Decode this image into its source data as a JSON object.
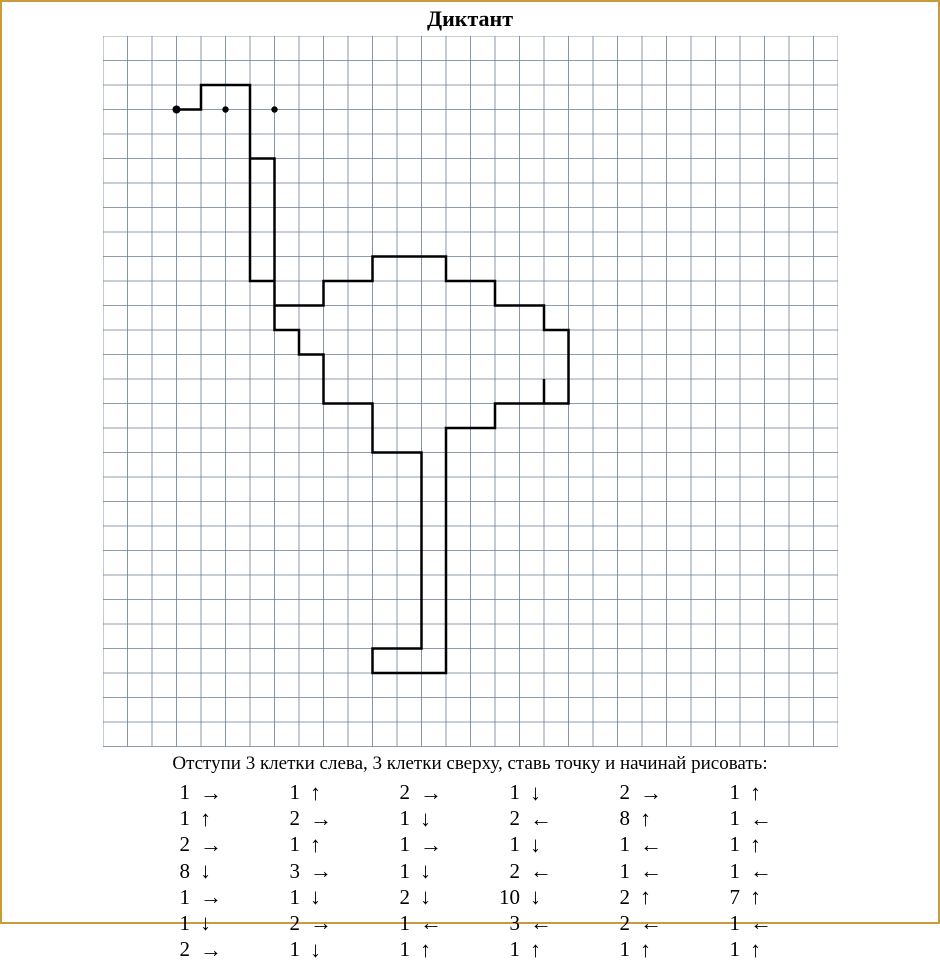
{
  "title": "Диктант",
  "caption": "Отступи 3 клетки слева, 3 клетки сверху, ставь точку и начинай рисовать:",
  "grid": {
    "cell": 24.5,
    "cols": 30,
    "rows": 29,
    "background": "#ffffff",
    "grid_color": "#6b7b99",
    "grid_stroke": 0.8,
    "outline_color": "#000000",
    "outline_stroke": 2.5,
    "dot_color": "#000000",
    "start": {
      "col": 3,
      "row": 3
    },
    "eye_dots": [
      {
        "col": 5,
        "row": 3
      },
      {
        "col": 7,
        "row": 3
      }
    ]
  },
  "arrows": {
    "right": "→",
    "left": "←",
    "up": "↑",
    "down": "↓"
  },
  "steps": [
    {
      "n": 1,
      "d": "right"
    },
    {
      "n": 1,
      "d": "up"
    },
    {
      "n": 2,
      "d": "right"
    },
    {
      "n": 8,
      "d": "down"
    },
    {
      "n": 1,
      "d": "right"
    },
    {
      "n": 1,
      "d": "down"
    },
    {
      "n": 2,
      "d": "right"
    },
    {
      "n": 1,
      "d": "up"
    },
    {
      "n": 2,
      "d": "right"
    },
    {
      "n": 1,
      "d": "up"
    },
    {
      "n": 3,
      "d": "right"
    },
    {
      "n": 1,
      "d": "down"
    },
    {
      "n": 2,
      "d": "right"
    },
    {
      "n": 1,
      "d": "down"
    },
    {
      "n": 2,
      "d": "right"
    },
    {
      "n": 1,
      "d": "down"
    },
    {
      "n": 1,
      "d": "right"
    },
    {
      "n": 1,
      "d": "down"
    },
    {
      "n": 2,
      "d": "down"
    },
    {
      "n": 1,
      "d": "left"
    },
    {
      "n": 1,
      "d": "up"
    },
    {
      "n": 1,
      "d": "down"
    },
    {
      "n": 2,
      "d": "left"
    },
    {
      "n": 1,
      "d": "down"
    },
    {
      "n": 2,
      "d": "left"
    },
    {
      "n": 10,
      "d": "down"
    },
    {
      "n": 3,
      "d": "left"
    },
    {
      "n": 1,
      "d": "up"
    },
    {
      "n": 2,
      "d": "right"
    },
    {
      "n": 8,
      "d": "up"
    },
    {
      "n": 1,
      "d": "left"
    },
    {
      "n": 1,
      "d": "left"
    },
    {
      "n": 2,
      "d": "up"
    },
    {
      "n": 2,
      "d": "left"
    },
    {
      "n": 1,
      "d": "up"
    },
    {
      "n": 1,
      "d": "up"
    },
    {
      "n": 1,
      "d": "left"
    },
    {
      "n": 1,
      "d": "up"
    },
    {
      "n": 1,
      "d": "left"
    },
    {
      "n": 7,
      "d": "up"
    },
    {
      "n": 1,
      "d": "left"
    },
    {
      "n": 1,
      "d": "up"
    }
  ],
  "columns": 6,
  "rows_per_col": 7
}
